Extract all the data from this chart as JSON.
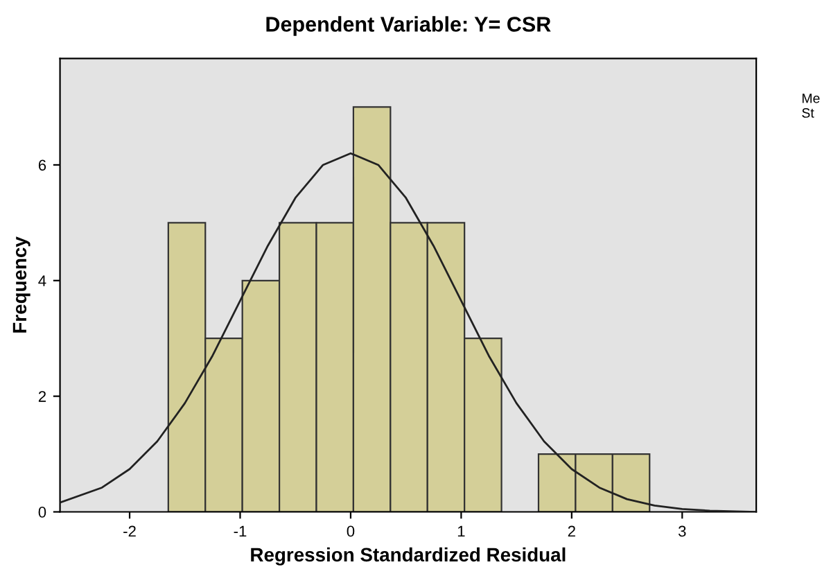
{
  "chart_data": {
    "type": "histogram",
    "title": "Dependent Variable: Y= CSR",
    "xlabel": "Regression Standardized Residual",
    "ylabel": "Frequency",
    "bins": [
      -1.65,
      -1.315,
      -0.98,
      -0.645,
      -0.31,
      0.025,
      0.36,
      0.695,
      1.03,
      1.365,
      1.7,
      2.035,
      2.37,
      2.705
    ],
    "values": [
      5,
      3,
      4,
      5,
      5,
      7,
      5,
      5,
      3,
      0,
      1,
      1,
      1
    ],
    "color": "#d4cf98",
    "series": [
      {
        "type": "line",
        "color": "#222222",
        "x": [
          -2.63,
          -2.25,
          -2,
          -1.75,
          -1.5,
          -1.25,
          -1,
          -0.75,
          -0.5,
          -0.25,
          0,
          0.25,
          0.5,
          0.75,
          1,
          1.25,
          1.5,
          1.75,
          2,
          2.25,
          2.5,
          2.75,
          3,
          3.25,
          3.67
        ],
        "values": [
          0.16,
          0.42,
          0.74,
          1.22,
          1.88,
          2.7,
          3.65,
          4.6,
          5.43,
          6.0,
          6.2,
          6.0,
          5.43,
          4.6,
          3.65,
          2.7,
          1.88,
          1.22,
          0.74,
          0.42,
          0.22,
          0.11,
          0.05,
          0.02,
          0.0
        ]
      }
    ],
    "xlim": [
      -2.63,
      3.67
    ],
    "ylim": [
      0,
      7.84
    ],
    "xticks": [
      -2,
      -1,
      0,
      1,
      2,
      3
    ],
    "yticks": [
      0,
      2,
      4,
      6
    ],
    "annotations": [
      "Me",
      "St"
    ],
    "grid": false,
    "legend": false
  }
}
